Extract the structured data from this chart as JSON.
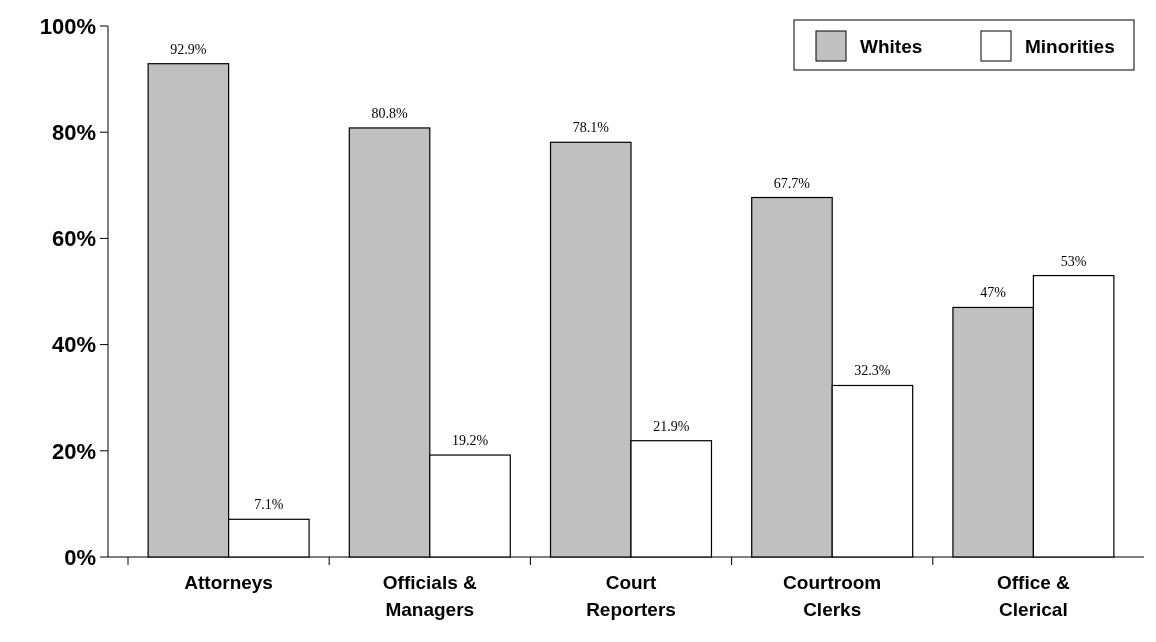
{
  "chart_data": {
    "type": "bar",
    "categories": [
      "Attorneys",
      "Officials & Managers",
      "Court Reporters",
      "Courtroom Clerks",
      "Office & Clerical"
    ],
    "series": [
      {
        "name": "Whites",
        "color": "#c0c0c0",
        "values": [
          92.9,
          80.8,
          78.1,
          67.7,
          47
        ],
        "value_labels": [
          "92.9%",
          "80.8%",
          "78.1%",
          "67.7%",
          "47%"
        ]
      },
      {
        "name": "Minorities",
        "color": "#ffffff",
        "values": [
          7.1,
          19.2,
          21.9,
          32.3,
          53
        ],
        "value_labels": [
          "7.1%",
          "19.2%",
          "21.9%",
          "32.3%",
          "53%"
        ]
      }
    ],
    "ylim": [
      0,
      100
    ],
    "yticks": [
      {
        "value": 0,
        "label": "0%"
      },
      {
        "value": 20,
        "label": "20%"
      },
      {
        "value": 40,
        "label": "40%"
      },
      {
        "value": 60,
        "label": "60%"
      },
      {
        "value": 80,
        "label": "80%"
      },
      {
        "value": 100,
        "label": "100%"
      }
    ],
    "grid": false,
    "legend": "top right"
  }
}
